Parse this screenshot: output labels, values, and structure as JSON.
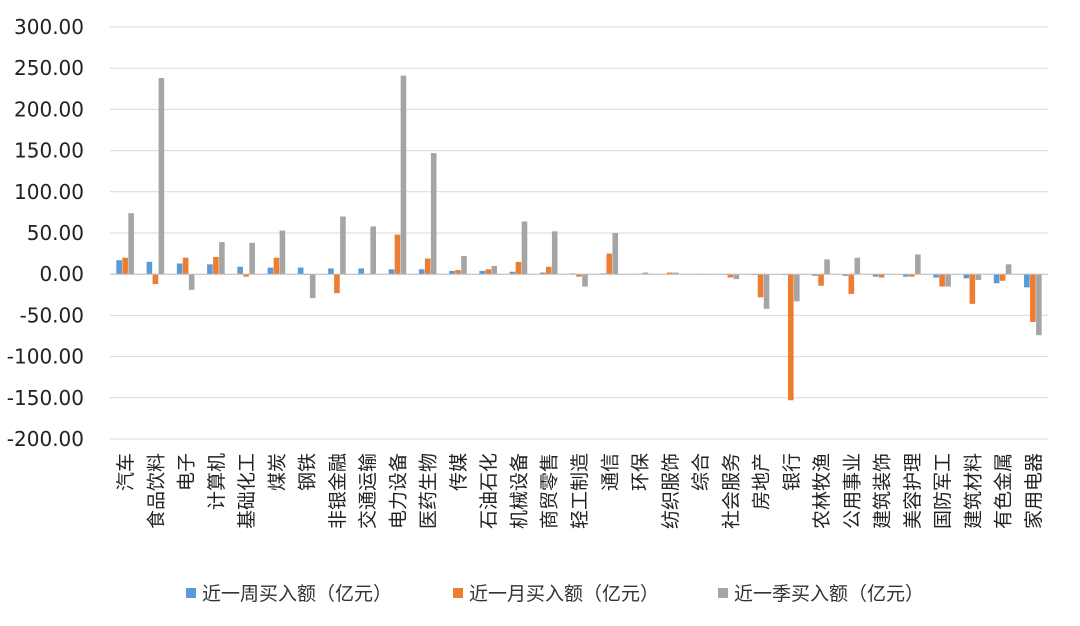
{
  "chart_data": {
    "type": "bar",
    "title": "",
    "xlabel": "",
    "ylabel": "",
    "ylim": [
      -200,
      300
    ],
    "yticks": [
      300,
      250,
      200,
      150,
      100,
      50,
      0,
      -50,
      -100,
      -150,
      -200
    ],
    "ytick_labels": [
      "300.00",
      "250.00",
      "200.00",
      "150.00",
      "100.00",
      "50.00",
      "0.00",
      "-50.00",
      "-100.00",
      "-150.00",
      "-200.00"
    ],
    "grid": true,
    "legend_position": "bottom",
    "categories": [
      "汽车",
      "食品饮料",
      "电子",
      "计算机",
      "基础化工",
      "煤炭",
      "钢铁",
      "非银金融",
      "交通运输",
      "电力设备",
      "医药生物",
      "传媒",
      "石油石化",
      "机械设备",
      "商贸零售",
      "轻工制造",
      "通信",
      "环保",
      "纺织服饰",
      "综合",
      "社会服务",
      "房地产",
      "银行",
      "农林牧渔",
      "公用事业",
      "建筑装饰",
      "美容护理",
      "国防军工",
      "建筑材料",
      "有色金属",
      "家用电器"
    ],
    "series": [
      {
        "name": "近一周买入额（亿元）",
        "color": "#5B9BD5",
        "values": [
          17,
          15,
          13,
          12,
          9,
          8,
          8,
          7,
          7,
          6,
          6,
          4,
          4,
          3,
          2,
          1,
          1,
          0.5,
          0.3,
          0.2,
          -0.5,
          -1,
          -1,
          -2,
          -2,
          -3,
          -3,
          -4,
          -5,
          -11,
          -16
        ]
      },
      {
        "name": "近一月买入额（亿元）",
        "color": "#ED7D31",
        "values": [
          20,
          -12,
          20,
          21,
          -3,
          20,
          -1,
          -23,
          0,
          48,
          19,
          5,
          6,
          15,
          9,
          -3,
          25,
          0.5,
          2,
          0,
          -4,
          -28,
          -153,
          -14,
          -24,
          -4,
          -3,
          -15,
          -36,
          -8,
          -58
        ]
      },
      {
        "name": "近一季买入额（亿元）",
        "color": "#A5A5A5",
        "values": [
          74,
          238,
          -19,
          39,
          38,
          53,
          -29,
          70,
          58,
          241,
          147,
          22,
          10,
          64,
          52,
          -15,
          50,
          2,
          2,
          0,
          -6,
          -42,
          -33,
          18,
          20,
          0,
          24,
          -15,
          -7,
          12,
          -74
        ]
      }
    ]
  }
}
